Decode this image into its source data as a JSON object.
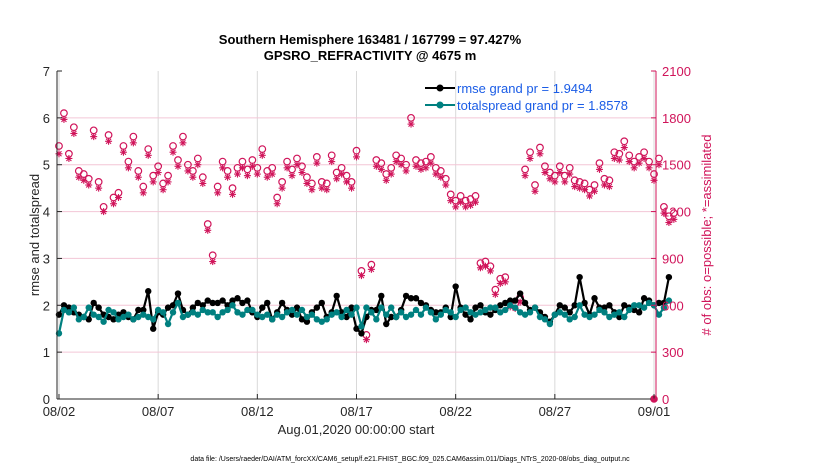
{
  "chart_data": {
    "type": "line",
    "title": "Southern Hemisphere 163481 / 167799 = 97.427%",
    "subtitle": "GPSRO_REFRACTIVITY @ 4675 m",
    "xlabel": "Aug.01,2020 00:00:00 start",
    "ylabel": "rmse and totalspread",
    "ylabel_right": "# of obs: o=possible; *=assimilated",
    "footer": "data file: /Users/raeder/DAI/ATM_forcXX/CAM6_setup/f.e21.FHIST_BGC.f09_025.CAM6assim.011/Diags_NTrS_2020-08/obs_diag_output.nc",
    "x_unit": "days since 2020-08-01 00:00",
    "x_step_days": 0.25,
    "x_start_day": 0.25,
    "xlim": [
      0.9,
      31.1
    ],
    "x_ticks": [
      1,
      6,
      11,
      16,
      21,
      26,
      31
    ],
    "x_tick_labels": [
      "08/02",
      "08/07",
      "08/12",
      "08/17",
      "08/22",
      "08/27",
      "09/01"
    ],
    "ylim": [
      0,
      7
    ],
    "y_ticks": [
      0,
      1,
      2,
      3,
      4,
      5,
      6,
      7
    ],
    "ylim_right": [
      0,
      2100
    ],
    "y_ticks_right": [
      0,
      300,
      600,
      900,
      1200,
      1500,
      1800,
      2100
    ],
    "grid": "vertical at x ticks; horizontal at right-axis ticks",
    "legend_position": "top-right",
    "colors": {
      "rmse": "#000000",
      "totalspread": "#008080",
      "obs": "#d0145a",
      "legend_text": "#1a5ce6",
      "right_axis": "#d0145a",
      "grid_v": "#d9d9d9",
      "grid_h": "#f3c6d6"
    },
    "series": [
      {
        "name": "rmse grand pr = 1.9494",
        "axis": "left",
        "values": [
          1.8,
          2.0,
          1.95,
          1.85,
          1.8,
          1.75,
          1.7,
          2.05,
          1.95,
          1.8,
          1.75,
          1.7,
          1.8,
          1.85,
          1.75,
          1.7,
          1.9,
          1.9,
          2.3,
          1.5,
          1.85,
          1.8,
          1.95,
          2.0,
          2.25,
          1.9,
          1.8,
          1.95,
          2.05,
          2.0,
          2.1,
          2.05,
          2.05,
          2.1,
          2.0,
          2.1,
          2.15,
          2.05,
          2.1,
          1.85,
          1.75,
          1.95,
          2.05,
          1.7,
          1.85,
          2.05,
          1.9,
          1.8,
          1.95,
          1.7,
          1.65,
          1.85,
          1.95,
          2.05,
          1.75,
          1.85,
          2.2,
          1.85,
          1.75,
          1.95,
          1.5,
          1.4,
          1.75,
          1.9,
          1.9,
          2.2,
          1.6,
          1.75,
          1.75,
          1.9,
          2.2,
          2.15,
          2.15,
          2.05,
          2.0,
          1.9,
          1.85,
          1.85,
          1.95,
          1.75,
          2.4,
          1.95,
          1.8,
          1.7,
          1.95,
          2.0,
          1.85,
          1.8,
          1.9,
          2.0,
          2.05,
          2.1,
          2.1,
          2.25,
          2.05,
          1.9,
          1.95,
          1.85,
          1.75,
          1.65,
          1.8,
          2.0,
          1.95,
          1.85,
          2.0,
          2.6,
          2.05,
          1.8,
          2.15,
          1.95,
          1.95,
          2.0,
          1.85,
          1.75,
          2.0,
          1.95,
          1.9,
          1.85,
          2.15,
          2.1,
          2.0,
          2.05,
          2.05,
          2.6
        ]
      },
      {
        "name": "totalspread grand pr = 1.8578",
        "axis": "left",
        "values": [
          1.4,
          1.9,
          1.85,
          1.95,
          1.7,
          1.75,
          1.95,
          1.8,
          1.75,
          1.65,
          1.9,
          1.85,
          1.7,
          1.75,
          1.8,
          1.7,
          1.75,
          1.8,
          1.75,
          1.7,
          1.9,
          1.85,
          1.6,
          1.85,
          2.05,
          1.75,
          1.8,
          1.85,
          1.8,
          1.9,
          1.85,
          1.85,
          1.75,
          1.85,
          1.9,
          2.0,
          1.85,
          1.8,
          1.9,
          1.9,
          1.8,
          1.75,
          1.8,
          1.7,
          1.8,
          1.75,
          1.85,
          1.9,
          1.8,
          1.9,
          1.75,
          1.8,
          1.7,
          1.65,
          1.7,
          1.8,
          1.85,
          1.75,
          1.9,
          1.8,
          1.95,
          1.55,
          1.95,
          1.85,
          1.7,
          1.95,
          1.8,
          1.95,
          1.75,
          1.85,
          1.75,
          1.8,
          1.9,
          1.8,
          1.95,
          1.85,
          1.7,
          1.8,
          1.9,
          1.85,
          1.75,
          1.9,
          1.95,
          1.85,
          1.8,
          1.85,
          1.9,
          1.95,
          1.95,
          1.85,
          1.9,
          2.0,
          1.95,
          1.85,
          1.8,
          1.85,
          1.95,
          1.75,
          1.7,
          1.6,
          1.8,
          1.85,
          1.8,
          1.7,
          1.75,
          2.0,
          1.8,
          1.75,
          1.8,
          1.9,
          1.85,
          1.75,
          1.8,
          1.85,
          1.75,
          1.9,
          2.0,
          2.0,
          1.95,
          2.05,
          2.0,
          1.8,
          1.95,
          2.1
        ]
      },
      {
        "name": "obs possible (o)",
        "axis": "right",
        "marker": "circle",
        "values": [
          1620,
          1830,
          1570,
          1740,
          1460,
          1440,
          1410,
          1720,
          1390,
          1230,
          1690,
          1290,
          1320,
          1620,
          1520,
          1680,
          1460,
          1360,
          1600,
          1430,
          1490,
          1380,
          1430,
          1620,
          1530,
          1680,
          1500,
          1460,
          1540,
          1420,
          1120,
          920,
          1360,
          1520,
          1460,
          1350,
          1480,
          1520,
          1470,
          1530,
          1480,
          1600,
          1460,
          1480,
          1290,
          1390,
          1520,
          1470,
          1540,
          1490,
          1420,
          1380,
          1550,
          1390,
          1380,
          1560,
          1450,
          1480,
          1430,
          1390,
          1590,
          820,
          410,
          860,
          1530,
          1510,
          1440,
          1480,
          1560,
          1540,
          1500,
          1800,
          1530,
          1510,
          1520,
          1550,
          1480,
          1460,
          1410,
          1310,
          1270,
          1300,
          1270,
          1280,
          1300,
          870,
          880,
          850,
          700,
          770,
          780,
          620,
          610,
          650,
          1470,
          1580,
          1370,
          1610,
          1490,
          1450,
          1430,
          1490,
          1430,
          1480,
          1400,
          1390,
          1380,
          1340,
          1370,
          1510,
          1410,
          1400,
          1580,
          1570,
          1650,
          1560,
          1520,
          1550,
          1580,
          1520,
          1440,
          1540,
          1230,
          1170,
          1190
        ]
      },
      {
        "name": "obs assimilated (*)",
        "axis": "right",
        "values": [
          1570,
          1790,
          1540,
          1700,
          1420,
          1400,
          1370,
          1680,
          1350,
          1200,
          1650,
          1250,
          1290,
          1580,
          1480,
          1640,
          1420,
          1320,
          1560,
          1390,
          1450,
          1340,
          1390,
          1580,
          1490,
          1640,
          1460,
          1420,
          1500,
          1380,
          1080,
          880,
          1320,
          1480,
          1420,
          1310,
          1440,
          1480,
          1430,
          1490,
          1440,
          1560,
          1420,
          1440,
          1250,
          1350,
          1480,
          1430,
          1500,
          1450,
          1380,
          1340,
          1510,
          1350,
          1340,
          1520,
          1410,
          1440,
          1390,
          1350,
          1550,
          790,
          380,
          830,
          1490,
          1470,
          1400,
          1440,
          1520,
          1500,
          1460,
          1760,
          1490,
          1470,
          1480,
          1510,
          1440,
          1420,
          1370,
          1270,
          1230,
          1260,
          1230,
          1240,
          1260,
          840,
          850,
          820,
          670,
          740,
          750,
          590,
          580,
          620,
          1430,
          1540,
          1330,
          1570,
          1450,
          1410,
          1390,
          1450,
          1390,
          1440,
          1360,
          1350,
          1340,
          1300,
          1330,
          1470,
          1370,
          1360,
          1540,
          1530,
          1610,
          1520,
          1480,
          1510,
          1540,
          1480,
          1400,
          1500,
          1190,
          1130,
          1150
        ]
      },
      {
        "name": "obs at 09/01 (end)",
        "axis": "right",
        "x": [
          31
        ],
        "values": [
          0
        ]
      }
    ]
  }
}
